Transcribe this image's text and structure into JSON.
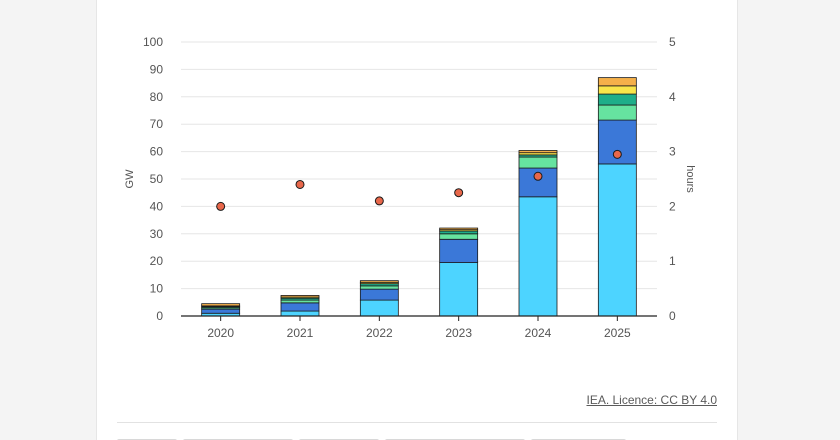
{
  "chart_data": {
    "type": "bar",
    "stacked": true,
    "categories": [
      "2020",
      "2021",
      "2022",
      "2023",
      "2024",
      "2025"
    ],
    "series": [
      {
        "color": "#4dd4ff",
        "values": [
          1.0,
          1.8,
          5.8,
          19.5,
          43.5,
          55.5
        ]
      },
      {
        "color": "#3b78d8",
        "values": [
          1.5,
          3.0,
          4.0,
          8.5,
          10.5,
          16.0
        ]
      },
      {
        "color": "#66e3a0",
        "values": [
          0.5,
          1.0,
          1.2,
          2.0,
          4.0,
          5.5
        ]
      },
      {
        "color": "#1fae89",
        "values": [
          0.4,
          0.7,
          0.8,
          1.0,
          0.8,
          4.0
        ]
      },
      {
        "color": "#f9e54a",
        "values": [
          0.3,
          0.4,
          0.5,
          0.5,
          0.8,
          3.0
        ]
      },
      {
        "color": "#f5b04a",
        "values": [
          0.8,
          0.6,
          0.6,
          0.6,
          0.8,
          3.0
        ]
      }
    ],
    "secondary_series": {
      "type": "scatter",
      "color": "#e8674a",
      "values": [
        2.0,
        2.4,
        2.1,
        2.25,
        2.55,
        2.95
      ]
    },
    "ylabel": "GW",
    "y2label": "hours",
    "ylim": [
      0,
      100
    ],
    "y2lim": [
      0,
      5
    ],
    "yticks": [
      0,
      10,
      20,
      30,
      40,
      50,
      60,
      70,
      80,
      90,
      100
    ],
    "y2ticks": [
      0,
      1,
      2,
      3,
      4,
      5
    ],
    "grid": true
  },
  "source": {
    "label": "IEA. Licence: CC BY 4.0"
  }
}
